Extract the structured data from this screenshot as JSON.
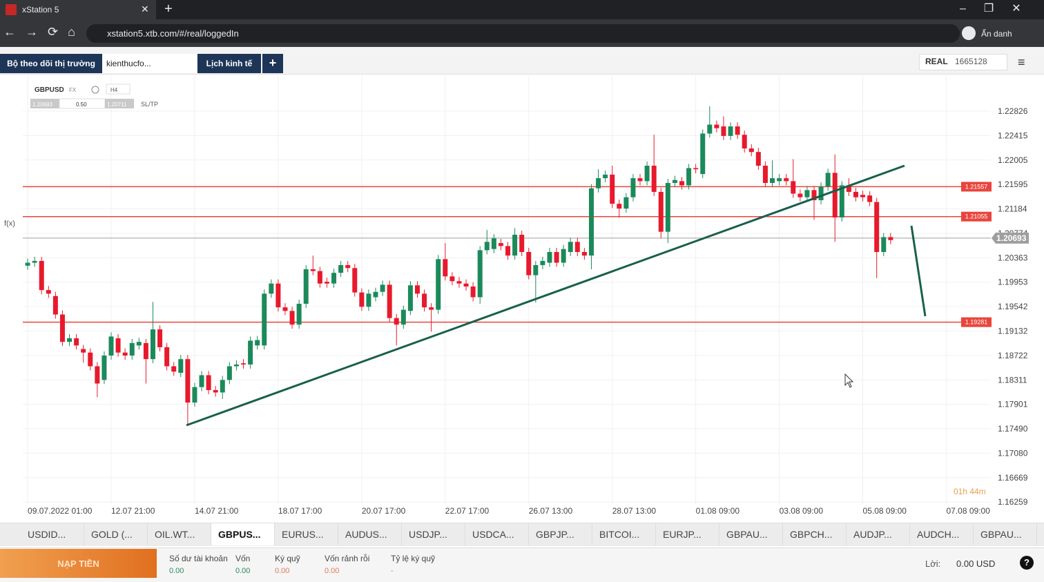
{
  "browser": {
    "tab_title": "xStation 5",
    "url": "xstation5.xtb.com/#/real/loggedIn",
    "profile": "Ẩn danh"
  },
  "app_tabs": [
    "Bộ theo dõi thị trường",
    "kienthucfo...",
    "Lịch kinh tế"
  ],
  "account": {
    "mode": "REAL",
    "number": "1665128"
  },
  "symbol": {
    "name": "GBPUSD",
    "market": "FX",
    "timeframe": "H4",
    "bid": "1.20693",
    "volume": "0.50",
    "ask": "1.20711",
    "sltp": "SL/TP"
  },
  "side_toolbar": {
    "fx": "f(x)"
  },
  "chart_data": {
    "type": "candlestick",
    "up_color": "#1b8a5a",
    "down_color": "#e8192c",
    "open": [
      1.2023,
      1.2028,
      1.2031,
      1.1982,
      1.1972,
      1.1941,
      1.1895,
      1.1901,
      1.1883,
      1.1877,
      1.1854,
      1.1831,
      1.1872,
      1.1901,
      1.1877,
      1.1872,
      1.1889,
      1.1893,
      1.1866,
      1.1916,
      1.1886,
      1.1854,
      1.1843,
      1.1866,
      1.1793,
      1.1819,
      1.1839,
      1.1814,
      1.181,
      1.1831,
      1.1854,
      1.1859,
      1.1857,
      1.1889,
      1.1889,
      1.1976,
      1.1993,
      1.1953,
      1.1947,
      1.1924,
      1.1959,
      1.2017,
      1.2014,
      1.1996,
      1.1993,
      1.2011,
      1.2024,
      1.2019,
      1.1978,
      1.1954,
      1.197,
      1.1979,
      1.1991,
      1.1935,
      1.1924,
      1.1947,
      1.199,
      1.1976,
      1.1953,
      1.1949,
      1.2034,
      1.2005,
      1.1997,
      1.1993,
      1.1988,
      1.197,
      1.2049,
      1.2051,
      1.2061,
      1.2056,
      1.204,
      1.2075,
      1.2046,
      1.2007,
      1.2024,
      1.2028,
      1.2046,
      1.2028,
      1.2046,
      1.2063,
      1.2046,
      1.204,
      1.2153,
      1.217,
      1.2176,
      1.2127,
      1.2119,
      1.2138,
      1.217,
      1.2165,
      1.2191,
      1.2147,
      1.208,
      1.2162,
      1.2165,
      1.2158,
      1.2187,
      1.2177,
      1.2245,
      1.226,
      1.2257,
      1.2241,
      1.2257,
      1.2243,
      1.222,
      1.2214,
      1.2191,
      1.2162,
      1.2165,
      1.217,
      1.2165,
      1.2144,
      1.2138,
      1.215,
      1.2133,
      1.2156,
      1.2179,
      1.2104,
      1.2158,
      1.2147,
      1.2142,
      1.2141,
      1.213,
      1.2046,
      1.2071
    ],
    "high": [
      1.2035,
      1.2038,
      1.2038,
      1.1989,
      1.1979,
      1.1948,
      1.1908,
      1.1908,
      1.189,
      1.1884,
      1.1861,
      1.1879,
      1.1911,
      1.1908,
      1.1884,
      1.19,
      1.1902,
      1.19,
      1.1962,
      1.1923,
      1.1893,
      1.1861,
      1.1873,
      1.1873,
      1.1826,
      1.1846,
      1.1846,
      1.1821,
      1.1838,
      1.1861,
      1.1864,
      1.1866,
      1.1904,
      1.1905,
      1.1983,
      1.2,
      1.2,
      1.196,
      1.1954,
      1.1966,
      1.2024,
      1.204,
      1.2021,
      1.2003,
      1.2018,
      1.2031,
      1.2031,
      1.2026,
      1.1985,
      1.1983,
      1.1986,
      1.1998,
      1.1998,
      1.1942,
      1.1956,
      1.1997,
      1.1997,
      1.1983,
      1.196,
      1.2041,
      1.2061,
      1.2012,
      1.2004,
      1.2,
      1.1995,
      1.2056,
      1.2083,
      1.2076,
      1.2068,
      1.2063,
      1.2086,
      1.2082,
      1.2053,
      1.2031,
      1.2038,
      1.2053,
      1.2053,
      1.2058,
      1.207,
      1.207,
      1.2053,
      1.216,
      1.2185,
      1.2183,
      1.2191,
      1.2134,
      1.2145,
      1.2177,
      1.2177,
      1.2198,
      1.2243,
      1.2154,
      1.2169,
      1.2174,
      1.2172,
      1.2194,
      1.2194,
      1.2252,
      1.2291,
      1.2267,
      1.2274,
      1.2264,
      1.2264,
      1.225,
      1.2227,
      1.2221,
      1.2198,
      1.22,
      1.2177,
      1.2177,
      1.2202,
      1.2151,
      1.2157,
      1.2157,
      1.2163,
      1.2186,
      1.221,
      1.2165,
      1.217,
      1.2154,
      1.2149,
      1.2148,
      1.2137,
      1.2078,
      1.2078
    ],
    "low": [
      1.2016,
      1.2021,
      1.1975,
      1.1969,
      1.1934,
      1.1888,
      1.1888,
      1.1882,
      1.186,
      1.1847,
      1.1802,
      1.1824,
      1.1865,
      1.187,
      1.1865,
      1.1865,
      1.1882,
      1.1825,
      1.1859,
      1.1879,
      1.1847,
      1.1838,
      1.1836,
      1.1756,
      1.1786,
      1.1812,
      1.1807,
      1.1803,
      1.1799,
      1.1824,
      1.1847,
      1.185,
      1.185,
      1.1882,
      1.1882,
      1.1969,
      1.1946,
      1.194,
      1.1917,
      1.1917,
      1.1952,
      1.2007,
      1.1986,
      1.1986,
      1.1986,
      1.2004,
      1.2012,
      1.1971,
      1.1947,
      1.1947,
      1.1963,
      1.1972,
      1.1928,
      1.1889,
      1.1917,
      1.194,
      1.1969,
      1.1946,
      1.1912,
      1.1942,
      1.1998,
      1.199,
      1.1986,
      1.1981,
      1.1963,
      1.1959,
      1.2042,
      1.2044,
      1.2049,
      1.2033,
      1.2033,
      1.2039,
      1.2,
      1.1961,
      1.2017,
      1.2021,
      1.2021,
      1.2021,
      1.2039,
      1.2039,
      1.2033,
      1.2017,
      1.2146,
      1.2163,
      1.212,
      1.2104,
      1.2112,
      1.2131,
      1.2158,
      1.2158,
      1.214,
      1.2069,
      1.2061,
      1.2155,
      1.2151,
      1.2151,
      1.2178,
      1.217,
      1.2238,
      1.2247,
      1.2234,
      1.2234,
      1.2236,
      1.2213,
      1.2207,
      1.2184,
      1.2155,
      1.2155,
      1.2158,
      1.2158,
      1.2137,
      1.2131,
      1.2131,
      1.21,
      1.2126,
      1.2149,
      1.2063,
      1.2097,
      1.214,
      1.2131,
      1.2131,
      1.2123,
      1.2002,
      1.2039,
      1.2059
    ],
    "close": [
      1.2028,
      1.2031,
      1.1982,
      1.1976,
      1.1941,
      1.1895,
      1.1901,
      1.1889,
      1.1877,
      1.1854,
      1.1825,
      1.1872,
      1.1904,
      1.1877,
      1.1872,
      1.1893,
      1.1895,
      1.1866,
      1.1916,
      1.1886,
      1.1854,
      1.1845,
      1.1866,
      1.1793,
      1.1819,
      1.1839,
      1.1814,
      1.181,
      1.1831,
      1.1854,
      1.1857,
      1.1857,
      1.1897,
      1.1898,
      1.1976,
      1.1993,
      1.1953,
      1.1947,
      1.1924,
      1.1959,
      1.2017,
      1.2014,
      1.1993,
      1.1993,
      1.2011,
      1.2024,
      1.2019,
      1.1978,
      1.1954,
      1.1976,
      1.1979,
      1.1991,
      1.1935,
      1.1924,
      1.1949,
      1.199,
      1.1976,
      1.1953,
      1.1949,
      1.2034,
      1.2005,
      1.1997,
      1.1993,
      1.1988,
      1.197,
      1.2049,
      1.2063,
      1.2069,
      1.2056,
      1.204,
      1.2075,
      1.2046,
      1.2007,
      1.2024,
      1.2031,
      1.2046,
      1.2028,
      1.2051,
      1.2063,
      1.2046,
      1.204,
      1.2153,
      1.217,
      1.2176,
      1.2127,
      1.2119,
      1.2138,
      1.217,
      1.2165,
      1.2191,
      1.2147,
      1.208,
      1.2162,
      1.2167,
      1.2158,
      1.2187,
      1.2185,
      1.2245,
      1.226,
      1.2254,
      1.2241,
      1.2257,
      1.2243,
      1.222,
      1.2214,
      1.2191,
      1.2162,
      1.217,
      1.217,
      1.2165,
      1.2144,
      1.2138,
      1.215,
      1.2133,
      1.2156,
      1.2179,
      1.2104,
      1.2158,
      1.2147,
      1.2138,
      1.2138,
      1.213,
      1.2046,
      1.2071,
      1.2066
    ],
    "xlim": [
      -0.7,
      138.4
    ],
    "xticks": [
      {
        "value": 0,
        "label": "09.07.2022 01:00"
      },
      {
        "value": 12,
        "label": "12.07 21:00"
      },
      {
        "value": 24,
        "label": "14.07 21:00"
      },
      {
        "value": 36,
        "label": "18.07 17:00"
      },
      {
        "value": 48,
        "label": "20.07 17:00"
      },
      {
        "value": 60,
        "label": "22.07 17:00"
      },
      {
        "value": 72,
        "label": "26.07 13:00"
      },
      {
        "value": 84,
        "label": "28.07 13:00"
      },
      {
        "value": 96,
        "label": "01.08 09:00"
      },
      {
        "value": 108,
        "label": "03.08 09:00"
      },
      {
        "value": 120,
        "label": "05.08 09:00"
      },
      {
        "value": 132,
        "label": "07.08 09:00"
      }
    ],
    "ylim": [
      1.16226,
      1.23418
    ],
    "yticks": [
      1.22826,
      1.22415,
      1.22005,
      1.21595,
      1.21184,
      1.20774,
      1.20363,
      1.19953,
      1.19542,
      1.19132,
      1.18722,
      1.18311,
      1.17901,
      {
        "value": 1.1749,
        "label": "1.17490"
      },
      {
        "value": 1.1708,
        "label": "1.17080"
      },
      1.16669,
      1.16259
    ],
    "grid": true,
    "levels": [
      1.21557,
      1.21055,
      1.19281
    ],
    "level_color": "#e8453c",
    "current_price": 1.20693,
    "current_price_color": "#9e9e9e",
    "countdown": "01h 44m"
  },
  "instrument_tabs": [
    "USDID...",
    "GOLD (...",
    "OIL.WT...",
    "GBPUS...",
    "EURUS...",
    "AUDUS...",
    "USDJP...",
    "USDCA...",
    "GBPJP...",
    "BITCOI...",
    "EURJP...",
    "GBPAU...",
    "GBPCH...",
    "AUDJP...",
    "AUDCH...",
    "GBPAU..."
  ],
  "active_tab": 3,
  "footer": {
    "deposit": "NẠP TIỀN",
    "fields": [
      {
        "label": "Số dư tài khoản",
        "value": "0.00"
      },
      {
        "label": "Vốn",
        "value": "0.00"
      },
      {
        "label": "Ký quỹ",
        "value": "0.00"
      },
      {
        "label": "Vốn rảnh rỗi",
        "value": "0.00"
      },
      {
        "label": "Tỷ lệ ký quỹ",
        "value": "-"
      }
    ],
    "profit_label": "Lời:",
    "profit_value": "0.00 USD"
  }
}
